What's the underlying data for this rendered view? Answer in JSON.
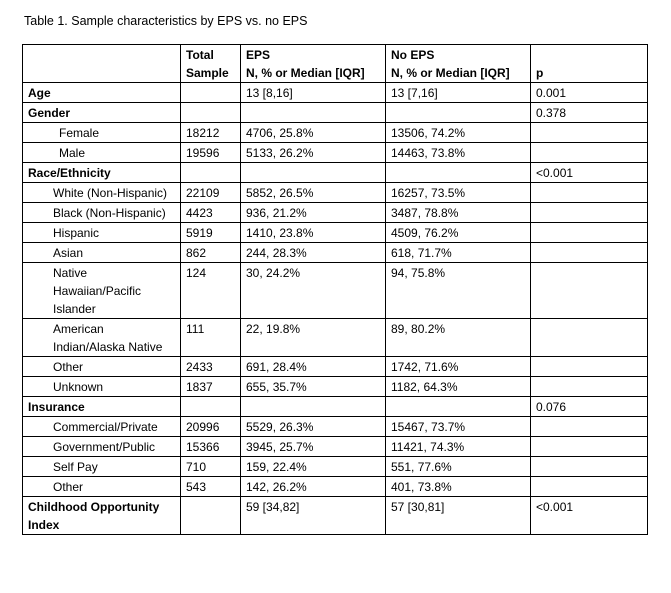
{
  "caption": "Table 1. Sample characteristics by EPS vs. no EPS",
  "table": {
    "header": [
      null,
      [
        "Total",
        "Sample"
      ],
      [
        "EPS",
        "N, % or Median [IQR]"
      ],
      [
        "No EPS",
        "N, % or Median [IQR]"
      ],
      "p"
    ],
    "sections": [
      {
        "label": "Age",
        "cells": [
          null,
          "13 [8,16]",
          "13 [7,16]",
          "0.001"
        ],
        "rows": []
      },
      {
        "label": "Gender",
        "cells": [
          null,
          null,
          null,
          "0.378"
        ],
        "rows": [
          [
            "Female",
            "18212",
            "4706, 25.8%",
            "13506, 74.2%",
            null
          ],
          [
            "Male",
            "19596",
            "5133, 26.2%",
            "14463, 73.8%",
            null
          ]
        ]
      },
      {
        "label": "Race/Ethnicity",
        "cells": [
          null,
          null,
          null,
          "<0.001"
        ],
        "rows": [
          [
            "White (Non-Hispanic)",
            "22109",
            "5852, 26.5%",
            "16257, 73.5%",
            null
          ],
          [
            "Black (Non-Hispanic)",
            "4423",
            "936, 21.2%",
            "3487, 78.8%",
            null
          ],
          [
            "Hispanic",
            "5919",
            "1410, 23.8%",
            "4509, 76.2%",
            null
          ],
          [
            "Asian",
            "862",
            "244, 28.3%",
            "618, 71.7%",
            null
          ],
          [
            "Native Hawaiian/Pacific Islander",
            "124",
            "30, 24.2%",
            "94, 75.8%",
            null
          ],
          [
            "American Indian/Alaska Native",
            "111",
            "22, 19.8%",
            "89, 80.2%",
            null
          ],
          [
            "Other",
            "2433",
            "691, 28.4%",
            "1742, 71.6%",
            null
          ],
          [
            "Unknown",
            "1837",
            "655, 35.7%",
            "1182, 64.3%",
            null
          ]
        ]
      },
      {
        "label": "Insurance",
        "cells": [
          null,
          null,
          null,
          "0.076"
        ],
        "rows": [
          [
            "Commercial/Private",
            "20996",
            "5529, 26.3%",
            "15467, 73.7%",
            null
          ],
          [
            "Government/Public",
            "15366",
            "3945, 25.7%",
            "11421, 74.3%",
            null
          ],
          [
            "Self Pay",
            "710",
            "159, 22.4%",
            "551, 77.6%",
            null
          ],
          [
            "Other",
            "543",
            "142, 26.2%",
            "401, 73.8%",
            null
          ]
        ]
      },
      {
        "label": "Childhood Opportunity Index",
        "cells": [
          null,
          "59 [34,82]",
          "57 [30,81]",
          "<0.001"
        ],
        "rows": []
      }
    ]
  }
}
